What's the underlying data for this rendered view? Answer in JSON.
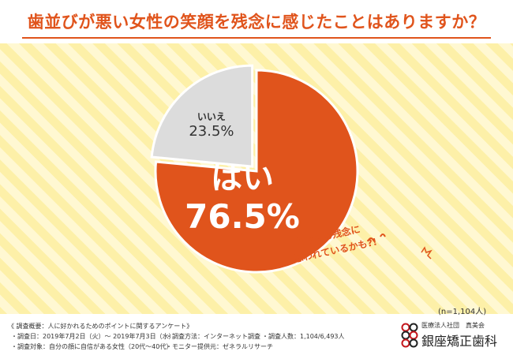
{
  "title": "歯並びが悪い女性の笑顔を残念に感じたことはありますか？",
  "colors": {
    "accent": "#e0541c",
    "no_slice": "#dcdcdc",
    "background_stripes": "#fdf0a8",
    "background_light": "#fff8d2"
  },
  "chart_data": {
    "type": "pie",
    "slices": [
      {
        "label": "はい",
        "value": 76.5,
        "display": "76.5%",
        "color": "#e0541c"
      },
      {
        "label": "いいえ",
        "value": 23.5,
        "display": "23.5%",
        "color": "#dcdcdc"
      }
    ],
    "sample_size": "(n=1,104人)"
  },
  "annotation": {
    "line1": "あなたも残念に",
    "line2": "思われているかも?!"
  },
  "survey": {
    "heading": "《 調査概要：人に好かれるためのポイントに関するアンケート》",
    "date": "・調査日：2019年7月2日（火）～ 2019年7月3日（水）",
    "method": "・調査方法：インターネット調査",
    "count": "・調査人数：1,104/6,493人",
    "target": "・調査対象：自分の顔に自信がある女性（20代～40代）",
    "provider": "・モニター提供元：ゼネラルリサーチ"
  },
  "clinic": {
    "small": "医療法人社団　真美会",
    "name": "銀座矯正歯科"
  }
}
